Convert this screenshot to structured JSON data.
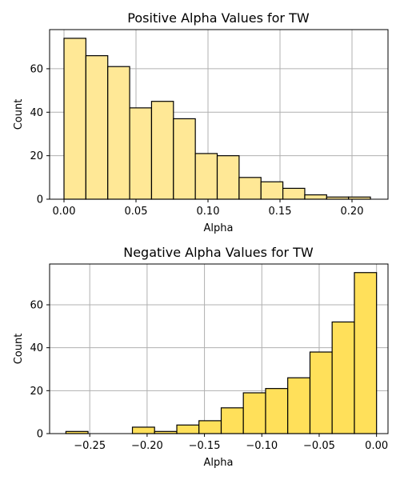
{
  "chart_data": [
    {
      "type": "bar",
      "title": "Positive Alpha Values for TW",
      "xlabel": "Alpha",
      "ylabel": "Count",
      "xlim": [
        -0.01,
        0.225
      ],
      "ylim": [
        0,
        78
      ],
      "xticks": [
        0.0,
        0.05,
        0.1,
        0.15,
        0.2
      ],
      "xtick_labels": [
        "0.00",
        "0.05",
        "0.10",
        "0.15",
        "0.20"
      ],
      "yticks": [
        0,
        20,
        40,
        60
      ],
      "ytick_labels": [
        "0",
        "20",
        "40",
        "60"
      ],
      "grid": true,
      "bar_color": "#ffe896",
      "bins": [
        {
          "x0": 0.0,
          "x1": 0.0152,
          "count": 74
        },
        {
          "x0": 0.0152,
          "x1": 0.0304,
          "count": 66
        },
        {
          "x0": 0.0304,
          "x1": 0.0456,
          "count": 61
        },
        {
          "x0": 0.0456,
          "x1": 0.0608,
          "count": 42
        },
        {
          "x0": 0.0608,
          "x1": 0.076,
          "count": 45
        },
        {
          "x0": 0.076,
          "x1": 0.0912,
          "count": 37
        },
        {
          "x0": 0.0912,
          "x1": 0.1064,
          "count": 21
        },
        {
          "x0": 0.1064,
          "x1": 0.1216,
          "count": 20
        },
        {
          "x0": 0.1216,
          "x1": 0.1368,
          "count": 10
        },
        {
          "x0": 0.1368,
          "x1": 0.152,
          "count": 8
        },
        {
          "x0": 0.152,
          "x1": 0.1672,
          "count": 5
        },
        {
          "x0": 0.1672,
          "x1": 0.1824,
          "count": 2
        },
        {
          "x0": 0.1824,
          "x1": 0.1976,
          "count": 1
        },
        {
          "x0": 0.1976,
          "x1": 0.2128,
          "count": 1
        }
      ]
    },
    {
      "type": "bar",
      "title": "Negative Alpha Values for TW",
      "xlabel": "Alpha",
      "ylabel": "Count",
      "xlim": [
        -0.285,
        0.01
      ],
      "ylim": [
        0,
        79
      ],
      "xticks": [
        -0.25,
        -0.2,
        -0.15,
        -0.1,
        -0.05,
        0.0
      ],
      "xtick_labels": [
        "−0.25",
        "−0.20",
        "−0.15",
        "−0.10",
        "−0.05",
        "0.00"
      ],
      "yticks": [
        0,
        20,
        40,
        60
      ],
      "ytick_labels": [
        "0",
        "20",
        "40",
        "60"
      ],
      "grid": true,
      "bar_color": "#ffe05a",
      "bins": [
        {
          "x0": -0.2708,
          "x1": -0.2515,
          "count": 1
        },
        {
          "x0": -0.2515,
          "x1": -0.2322,
          "count": 0
        },
        {
          "x0": -0.2322,
          "x1": -0.2128,
          "count": 0
        },
        {
          "x0": -0.2128,
          "x1": -0.1935,
          "count": 3
        },
        {
          "x0": -0.1935,
          "x1": -0.1741,
          "count": 1
        },
        {
          "x0": -0.1741,
          "x1": -0.1548,
          "count": 4
        },
        {
          "x0": -0.1548,
          "x1": -0.1354,
          "count": 6
        },
        {
          "x0": -0.1354,
          "x1": -0.1161,
          "count": 12
        },
        {
          "x0": -0.1161,
          "x1": -0.0967,
          "count": 19
        },
        {
          "x0": -0.0967,
          "x1": -0.0774,
          "count": 21
        },
        {
          "x0": -0.0774,
          "x1": -0.058,
          "count": 26
        },
        {
          "x0": -0.058,
          "x1": -0.0387,
          "count": 38
        },
        {
          "x0": -0.0387,
          "x1": -0.0193,
          "count": 52
        },
        {
          "x0": -0.0193,
          "x1": 0.0,
          "count": 75
        }
      ]
    }
  ]
}
